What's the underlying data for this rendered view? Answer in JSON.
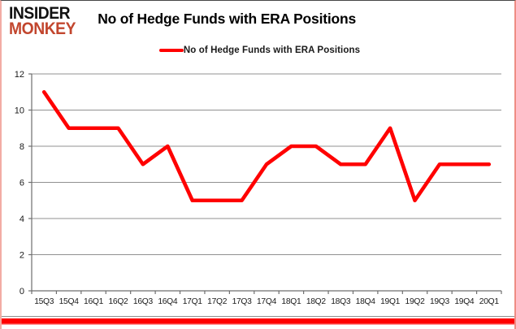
{
  "logo": {
    "line1": "INSIDER",
    "line2": "MONKEY",
    "color_top": "#111111",
    "color_bottom": "#c2462e"
  },
  "title": "No of Hedge Funds with ERA Positions",
  "legend": {
    "label": "No of Hedge Funds with ERA Positions",
    "line_color": "#ff0000"
  },
  "colors": {
    "series": "#ff0000",
    "gridline": "#909090",
    "axis": "#6e6e6e",
    "tick_text": "#1a1a1a",
    "frame_bottom_bar": "#ff0000"
  },
  "chart_data": {
    "type": "line",
    "title": "No of Hedge Funds with ERA Positions",
    "categories": [
      "15Q3",
      "15Q4",
      "16Q1",
      "16Q2",
      "16Q3",
      "16Q4",
      "17Q1",
      "17Q2",
      "17Q3",
      "17Q4",
      "18Q1",
      "18Q2",
      "18Q3",
      "18Q4",
      "19Q1",
      "19Q2",
      "19Q3",
      "19Q4",
      "20Q1"
    ],
    "series": [
      {
        "name": "No of Hedge Funds with ERA Positions",
        "color": "#ff0000",
        "values": [
          11,
          9,
          9,
          9,
          7,
          8,
          5,
          5,
          5,
          7,
          8,
          8,
          7,
          7,
          9,
          5,
          7,
          7,
          7
        ]
      }
    ],
    "xlabel": "",
    "ylabel": "",
    "ylim": [
      0,
      12
    ],
    "yticks": [
      0,
      2,
      4,
      6,
      8,
      10,
      12
    ],
    "grid": true,
    "legend_position": "top-center"
  }
}
